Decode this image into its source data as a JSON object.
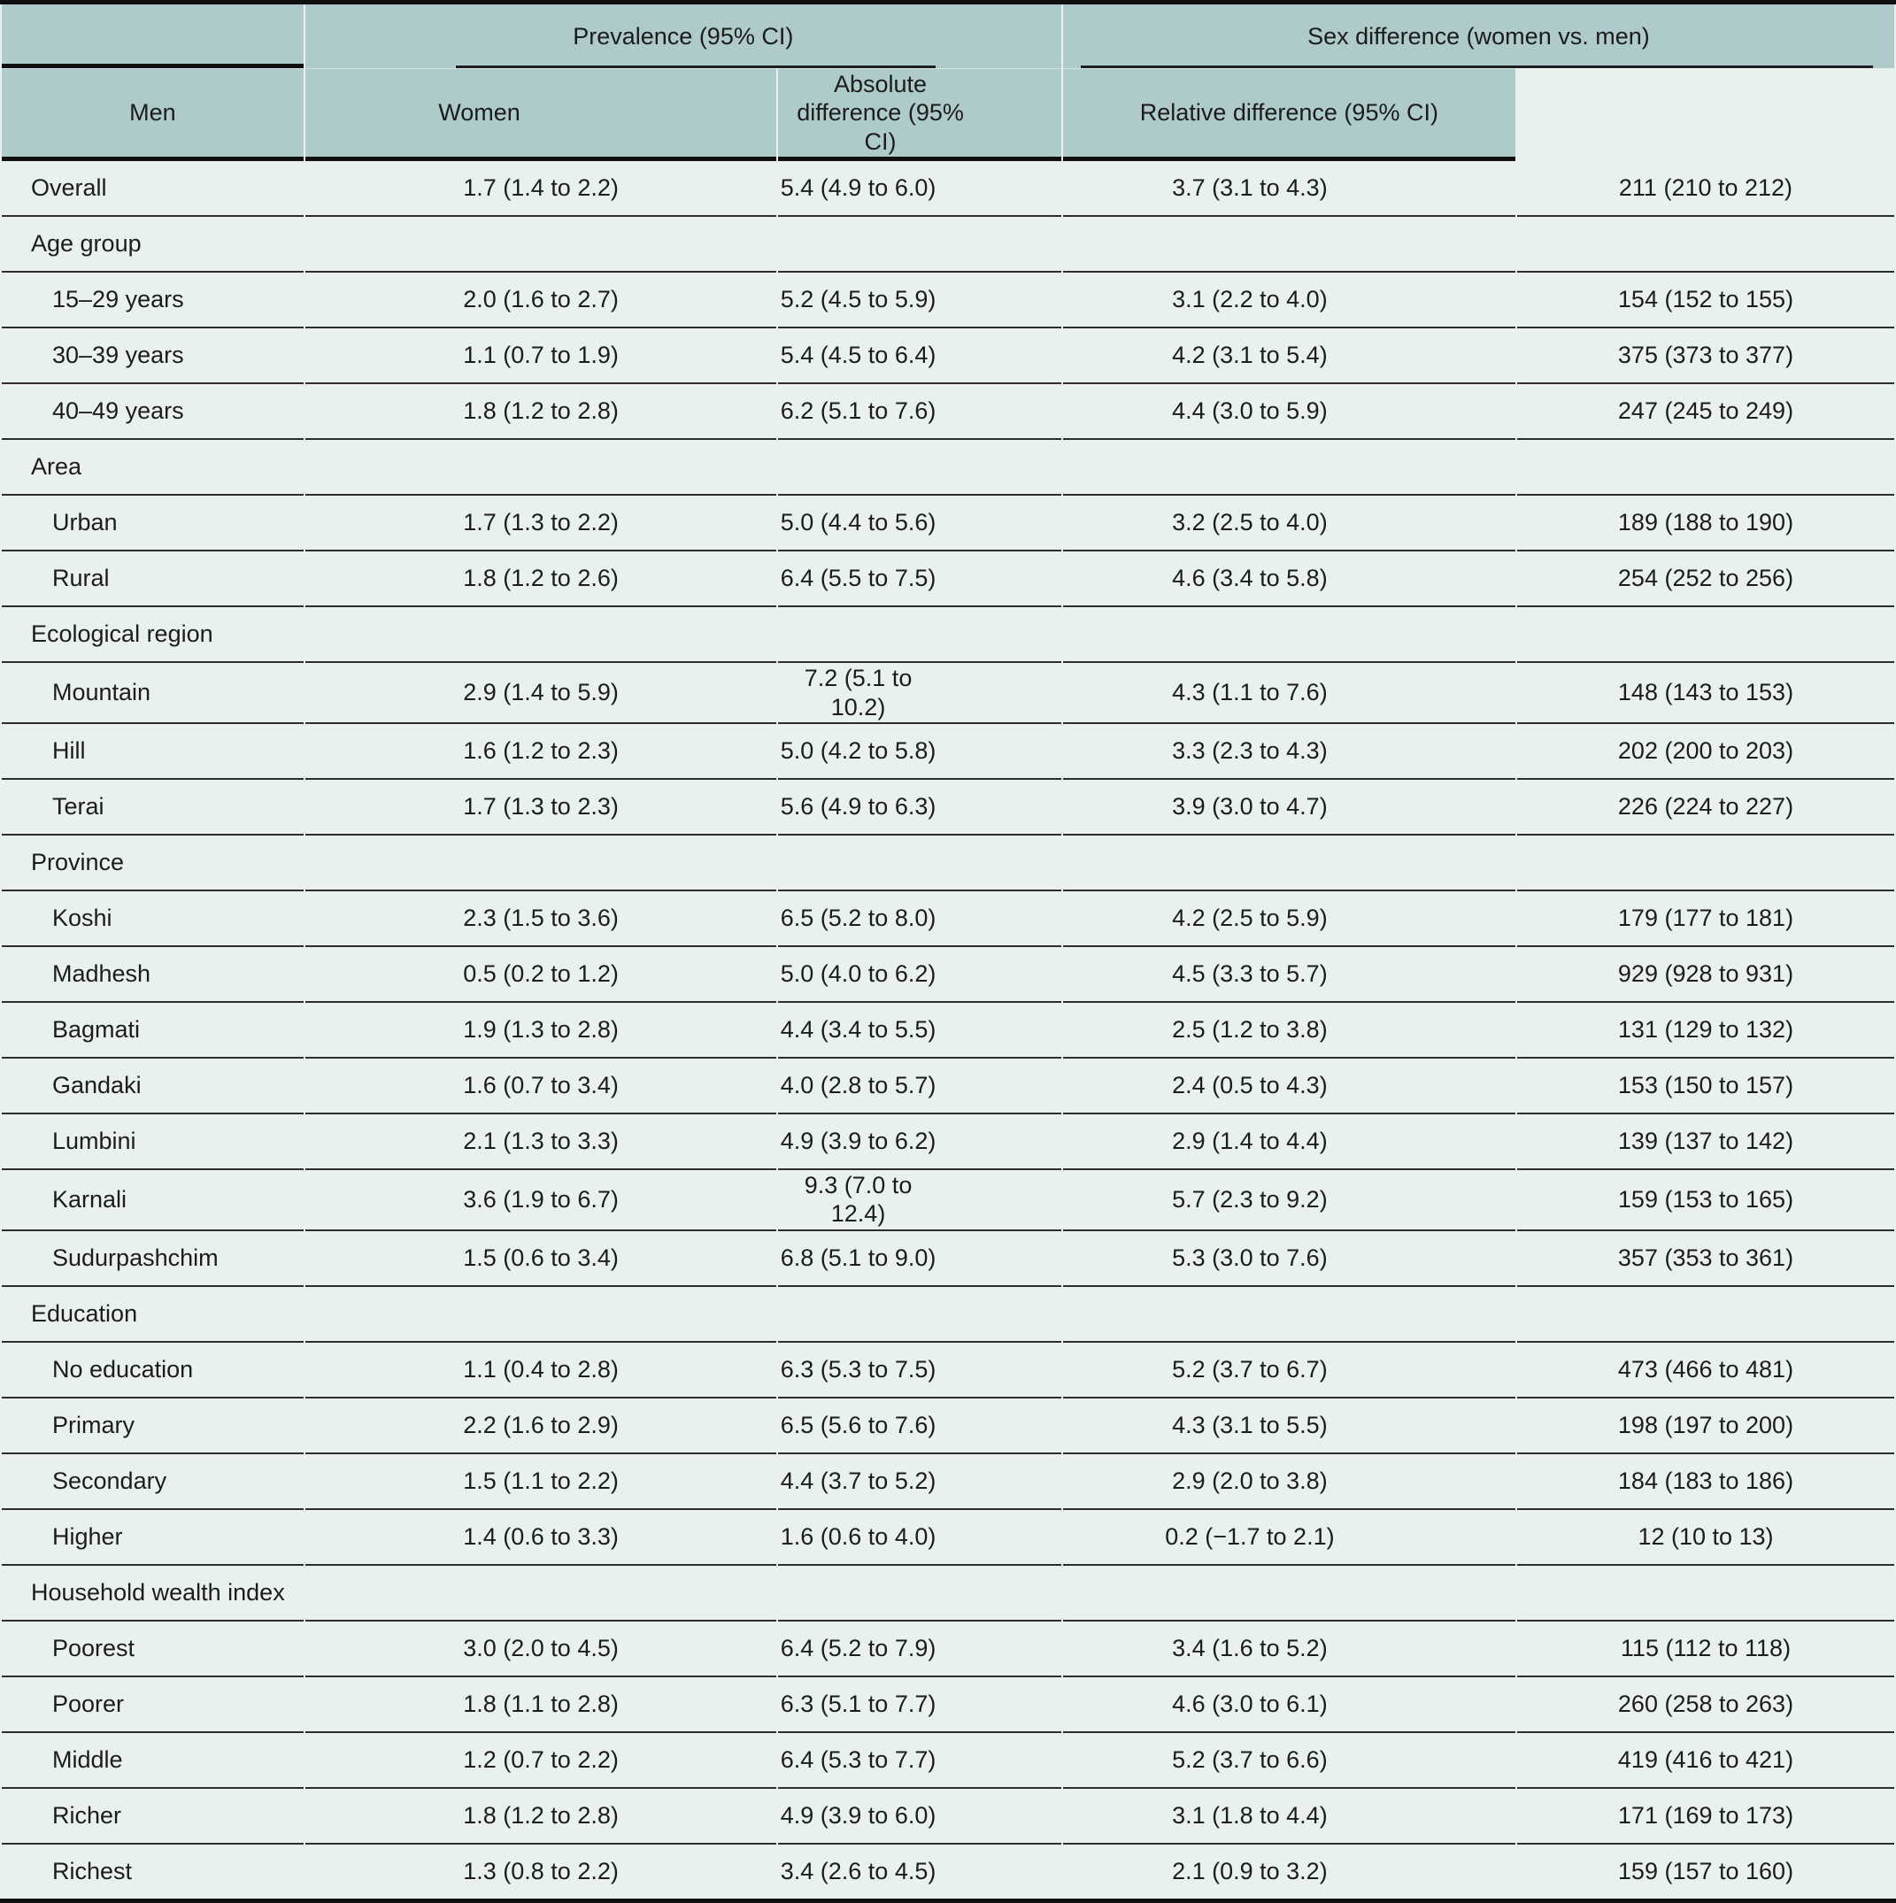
{
  "colors": {
    "header_bg": "#aecaca",
    "row_bg": "#e9f1ef"
  },
  "header": {
    "group1": "Prevalence (95% CI)",
    "group2": "Sex difference (women vs. men)",
    "men": "Men",
    "women": "Women",
    "abs": "Absolute difference (95% CI)",
    "rel": "Relative difference (95% CI)"
  },
  "rows": [
    {
      "kind": "data",
      "indent": false,
      "label": "Overall",
      "men": "1.7 (1.4 to 2.2)",
      "women": "5.4 (4.9 to 6.0)",
      "abs": "3.7 (3.1 to 4.3)",
      "rel": "211 (210 to 212)"
    },
    {
      "kind": "section",
      "label": "Age group"
    },
    {
      "kind": "data",
      "indent": true,
      "label": "15–29 years",
      "men": "2.0 (1.6 to 2.7)",
      "women": "5.2 (4.5 to 5.9)",
      "abs": "3.1 (2.2 to 4.0)",
      "rel": "154 (152 to 155)"
    },
    {
      "kind": "data",
      "indent": true,
      "label": "30–39 years",
      "men": "1.1 (0.7 to 1.9)",
      "women": "5.4 (4.5 to 6.4)",
      "abs": "4.2 (3.1 to 5.4)",
      "rel": "375 (373 to 377)"
    },
    {
      "kind": "data",
      "indent": true,
      "label": "40–49 years",
      "men": "1.8 (1.2 to 2.8)",
      "women": "6.2 (5.1 to 7.6)",
      "abs": "4.4 (3.0 to 5.9)",
      "rel": "247 (245 to 249)"
    },
    {
      "kind": "section",
      "label": "Area"
    },
    {
      "kind": "data",
      "indent": true,
      "label": "Urban",
      "men": "1.7 (1.3 to 2.2)",
      "women": "5.0 (4.4 to 5.6)",
      "abs": "3.2 (2.5 to 4.0)",
      "rel": "189 (188 to 190)"
    },
    {
      "kind": "data",
      "indent": true,
      "label": "Rural",
      "men": "1.8 (1.2 to 2.6)",
      "women": "6.4 (5.5 to 7.5)",
      "abs": "4.6 (3.4 to 5.8)",
      "rel": "254 (252 to 256)"
    },
    {
      "kind": "section",
      "label": "Ecological region"
    },
    {
      "kind": "data",
      "indent": true,
      "label": "Mountain",
      "men": "2.9 (1.4 to 5.9)",
      "women": "7.2 (5.1 to 10.2)",
      "abs": "4.3 (1.1 to 7.6)",
      "rel": "148 (143 to 153)"
    },
    {
      "kind": "data",
      "indent": true,
      "label": "Hill",
      "men": "1.6 (1.2 to 2.3)",
      "women": "5.0 (4.2 to 5.8)",
      "abs": "3.3 (2.3 to 4.3)",
      "rel": "202 (200 to 203)"
    },
    {
      "kind": "data",
      "indent": true,
      "label": "Terai",
      "men": "1.7 (1.3 to 2.3)",
      "women": "5.6 (4.9 to 6.3)",
      "abs": "3.9 (3.0 to 4.7)",
      "rel": "226 (224 to 227)"
    },
    {
      "kind": "section",
      "label": "Province"
    },
    {
      "kind": "data",
      "indent": true,
      "label": "Koshi",
      "men": "2.3 (1.5 to 3.6)",
      "women": "6.5 (5.2 to 8.0)",
      "abs": "4.2 (2.5 to 5.9)",
      "rel": "179 (177 to 181)"
    },
    {
      "kind": "data",
      "indent": true,
      "label": "Madhesh",
      "men": "0.5 (0.2 to 1.2)",
      "women": "5.0 (4.0 to 6.2)",
      "abs": "4.5 (3.3 to 5.7)",
      "rel": "929 (928 to 931)"
    },
    {
      "kind": "data",
      "indent": true,
      "label": "Bagmati",
      "men": "1.9 (1.3 to 2.8)",
      "women": "4.4 (3.4 to 5.5)",
      "abs": "2.5 (1.2 to 3.8)",
      "rel": "131 (129 to 132)"
    },
    {
      "kind": "data",
      "indent": true,
      "label": "Gandaki",
      "men": "1.6 (0.7 to 3.4)",
      "women": "4.0 (2.8 to 5.7)",
      "abs": "2.4 (0.5 to 4.3)",
      "rel": "153 (150 to 157)"
    },
    {
      "kind": "data",
      "indent": true,
      "label": "Lumbini",
      "men": "2.1 (1.3 to 3.3)",
      "women": "4.9 (3.9 to 6.2)",
      "abs": "2.9 (1.4 to 4.4)",
      "rel": "139 (137 to 142)"
    },
    {
      "kind": "data",
      "indent": true,
      "label": "Karnali",
      "men": "3.6 (1.9 to 6.7)",
      "women": "9.3 (7.0 to 12.4)",
      "abs": "5.7 (2.3 to 9.2)",
      "rel": "159 (153 to 165)"
    },
    {
      "kind": "data",
      "indent": true,
      "label": "Sudurpashchim",
      "men": "1.5 (0.6 to 3.4)",
      "women": "6.8 (5.1 to 9.0)",
      "abs": "5.3 (3.0 to 7.6)",
      "rel": "357 (353 to 361)"
    },
    {
      "kind": "section",
      "label": "Education"
    },
    {
      "kind": "data",
      "indent": true,
      "label": "No education",
      "men": "1.1 (0.4 to 2.8)",
      "women": "6.3 (5.3 to 7.5)",
      "abs": "5.2 (3.7 to 6.7)",
      "rel": "473 (466 to 481)"
    },
    {
      "kind": "data",
      "indent": true,
      "label": "Primary",
      "men": "2.2 (1.6 to 2.9)",
      "women": "6.5 (5.6 to 7.6)",
      "abs": "4.3 (3.1 to 5.5)",
      "rel": "198 (197 to 200)"
    },
    {
      "kind": "data",
      "indent": true,
      "label": "Secondary",
      "men": "1.5 (1.1 to 2.2)",
      "women": "4.4 (3.7 to 5.2)",
      "abs": "2.9 (2.0 to 3.8)",
      "rel": "184 (183 to 186)"
    },
    {
      "kind": "data",
      "indent": true,
      "label": "Higher",
      "men": "1.4 (0.6 to 3.3)",
      "women": "1.6 (0.6 to 4.0)",
      "abs": "0.2 (−1.7 to 2.1)",
      "rel": "12 (10 to 13)"
    },
    {
      "kind": "section",
      "label": "Household wealth index"
    },
    {
      "kind": "data",
      "indent": true,
      "label": "Poorest",
      "men": "3.0 (2.0 to 4.5)",
      "women": "6.4 (5.2 to 7.9)",
      "abs": "3.4 (1.6 to 5.2)",
      "rel": "115 (112 to 118)"
    },
    {
      "kind": "data",
      "indent": true,
      "label": "Poorer",
      "men": "1.8 (1.1 to 2.8)",
      "women": "6.3 (5.1 to 7.7)",
      "abs": "4.6 (3.0 to 6.1)",
      "rel": "260 (258 to 263)"
    },
    {
      "kind": "data",
      "indent": true,
      "label": "Middle",
      "men": "1.2 (0.7 to 2.2)",
      "women": "6.4 (5.3 to 7.7)",
      "abs": "5.2 (3.7 to 6.6)",
      "rel": "419 (416 to 421)"
    },
    {
      "kind": "data",
      "indent": true,
      "label": "Richer",
      "men": "1.8 (1.2 to 2.8)",
      "women": "4.9 (3.9 to 6.0)",
      "abs": "3.1 (1.8 to 4.4)",
      "rel": "171 (169 to 173)"
    },
    {
      "kind": "data",
      "indent": true,
      "label": "Richest",
      "men": "1.3 (0.8 to 2.2)",
      "women": "3.4 (2.6 to 4.5)",
      "abs": "2.1 (0.9 to 3.2)",
      "rel": "159 (157 to 160)"
    }
  ]
}
